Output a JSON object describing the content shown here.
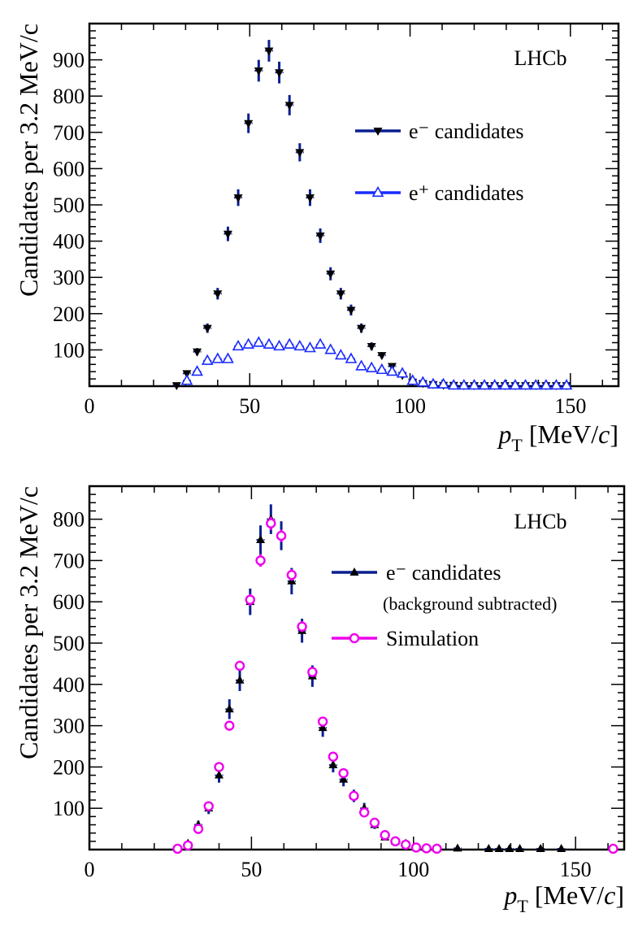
{
  "colors": {
    "data_electron": "#000000",
    "error_bar": "#0a1f8f",
    "positron": "#1a2bff",
    "simulation": "#ee00ee"
  },
  "chart_data": [
    {
      "type": "scatter",
      "title": "",
      "brand": "LHCb",
      "ylabel": "Candidates per 3.2 MeV/c",
      "xlabel_prefix": "p",
      "xlabel_sub": "T",
      "xlabel_rest": " [MeV/",
      "xlabel_unit": "c",
      "xlabel_close": "]",
      "xlim": [
        0,
        165
      ],
      "ylim": [
        0,
        1000
      ],
      "xticks": [
        0,
        50,
        100,
        150
      ],
      "xtick_labels": [
        "0",
        "50",
        "100",
        "150"
      ],
      "yticks": [
        100,
        200,
        300,
        400,
        500,
        600,
        700,
        800,
        900
      ],
      "ytick_labels": [
        "100",
        "200",
        "300",
        "400",
        "500",
        "600",
        "700",
        "800",
        "900"
      ],
      "legend": [
        {
          "label": "e⁻ candidates",
          "marker": "down-triangle-filled"
        },
        {
          "label": "e⁺ candidates",
          "marker": "up-triangle-open"
        }
      ],
      "series": [
        {
          "name": "e⁻ candidates",
          "marker": "down-triangle-filled",
          "x": [
            27.2,
            30.4,
            33.6,
            36.8,
            40.0,
            43.2,
            46.4,
            49.6,
            52.8,
            56.0,
            59.2,
            62.4,
            65.6,
            68.8,
            72.0,
            75.2,
            78.4,
            81.6,
            84.8,
            88.0,
            91.2,
            94.4,
            97.6,
            100.8,
            104.0,
            107.2,
            110.4,
            113.6,
            116.8,
            120.0,
            123.2,
            126.4,
            129.6,
            132.8,
            136.0,
            139.2,
            142.4,
            145.6,
            148.8
          ],
          "y": [
            2,
            35,
            95,
            160,
            255,
            420,
            520,
            725,
            870,
            925,
            865,
            775,
            645,
            520,
            415,
            310,
            255,
            210,
            160,
            110,
            85,
            55,
            30,
            12,
            8,
            5,
            3,
            3,
            2,
            2,
            2,
            2,
            2,
            2,
            2,
            2,
            2,
            2,
            2
          ],
          "err": [
            4,
            7,
            10,
            13,
            16,
            20,
            23,
            27,
            30,
            30,
            30,
            28,
            25,
            23,
            20,
            18,
            16,
            15,
            13,
            11,
            9,
            8,
            6,
            4,
            3,
            3,
            2,
            2,
            2,
            2,
            2,
            2,
            2,
            2,
            2,
            2,
            2,
            2,
            2
          ]
        },
        {
          "name": "e⁺ candidates",
          "marker": "up-triangle-open",
          "x": [
            30.4,
            33.6,
            36.8,
            40.0,
            43.2,
            46.4,
            49.6,
            52.8,
            56.0,
            59.2,
            62.4,
            65.6,
            68.8,
            72.0,
            75.2,
            78.4,
            81.6,
            84.8,
            88.0,
            91.2,
            94.4,
            97.6,
            100.8,
            104.0,
            107.2,
            110.4,
            113.6,
            116.8,
            120.0,
            123.2,
            126.4,
            129.6,
            132.8,
            136.0,
            139.2,
            142.4,
            145.6,
            148.8
          ],
          "y": [
            15,
            40,
            70,
            75,
            75,
            110,
            115,
            120,
            115,
            110,
            115,
            110,
            105,
            115,
            100,
            85,
            75,
            55,
            50,
            45,
            40,
            35,
            15,
            10,
            5,
            5,
            2,
            2,
            2,
            2,
            2,
            2,
            2,
            2,
            2,
            2,
            2,
            2
          ],
          "err": [
            4,
            6,
            8,
            9,
            9,
            10,
            11,
            11,
            11,
            10,
            11,
            10,
            10,
            11,
            10,
            9,
            9,
            7,
            7,
            7,
            6,
            6,
            4,
            3,
            2,
            2,
            2,
            2,
            2,
            2,
            2,
            2,
            2,
            2,
            2,
            2,
            2,
            2
          ]
        }
      ]
    },
    {
      "type": "scatter",
      "title": "",
      "brand": "LHCb",
      "ylabel": "Candidates per 3.2 MeV/c",
      "xlabel_prefix": "p",
      "xlabel_sub": "T",
      "xlabel_rest": " [MeV/",
      "xlabel_unit": "c",
      "xlabel_close": "]",
      "xlim": [
        0,
        165
      ],
      "ylim": [
        0,
        880
      ],
      "xticks": [
        0,
        50,
        100,
        150
      ],
      "xtick_labels": [
        "0",
        "50",
        "100",
        "150"
      ],
      "yticks": [
        100,
        200,
        300,
        400,
        500,
        600,
        700,
        800
      ],
      "ytick_labels": [
        "100",
        "200",
        "300",
        "400",
        "500",
        "600",
        "700",
        "800"
      ],
      "legend": [
        {
          "label": "e⁻ candidates",
          "sublabel": "(background subtracted)",
          "marker": "up-triangle-filled"
        },
        {
          "label": "Simulation",
          "marker": "circle-open"
        }
      ],
      "series": [
        {
          "name": "e⁻ candidates (background subtracted)",
          "marker": "up-triangle-filled",
          "x": [
            27.2,
            30.4,
            33.6,
            36.8,
            40.0,
            43.2,
            46.4,
            49.6,
            52.8,
            56.0,
            59.2,
            62.4,
            65.6,
            68.8,
            72.0,
            75.2,
            78.4,
            81.6,
            84.8,
            88.0,
            91.2,
            94.4,
            97.6,
            100.8,
            104.0,
            107.2,
            113.6,
            123.2,
            126.4,
            129.6,
            132.8,
            139.2,
            145.6
          ],
          "y": [
            3,
            15,
            60,
            100,
            180,
            340,
            410,
            600,
            750,
            800,
            760,
            650,
            530,
            420,
            295,
            205,
            170,
            130,
            100,
            60,
            30,
            20,
            15,
            5,
            3,
            3,
            3,
            2,
            2,
            2,
            2,
            2,
            2
          ],
          "err": [
            3,
            6,
            10,
            14,
            18,
            24,
            26,
            32,
            35,
            36,
            35,
            32,
            29,
            26,
            22,
            18,
            17,
            15,
            13,
            10,
            7,
            6,
            5,
            3,
            2,
            2,
            2,
            2,
            2,
            2,
            2,
            2,
            2
          ]
        },
        {
          "name": "Simulation",
          "marker": "circle-open",
          "x": [
            27.2,
            30.4,
            33.6,
            36.8,
            40.0,
            43.2,
            46.4,
            49.6,
            52.8,
            56.0,
            59.2,
            62.4,
            65.6,
            68.8,
            72.0,
            75.2,
            78.4,
            81.6,
            84.8,
            88.0,
            91.2,
            94.4,
            97.6,
            100.8,
            104.0,
            107.2,
            161.6
          ],
          "y": [
            2,
            10,
            50,
            105,
            200,
            300,
            445,
            605,
            700,
            790,
            760,
            665,
            540,
            430,
            310,
            225,
            185,
            130,
            90,
            65,
            35,
            20,
            12,
            5,
            3,
            2,
            2
          ],
          "err": [
            1,
            2,
            4,
            6,
            8,
            10,
            12,
            14,
            15,
            16,
            15,
            14,
            13,
            11,
            10,
            8,
            7,
            6,
            5,
            4,
            3,
            2,
            2,
            1,
            1,
            1,
            1
          ]
        }
      ]
    }
  ]
}
